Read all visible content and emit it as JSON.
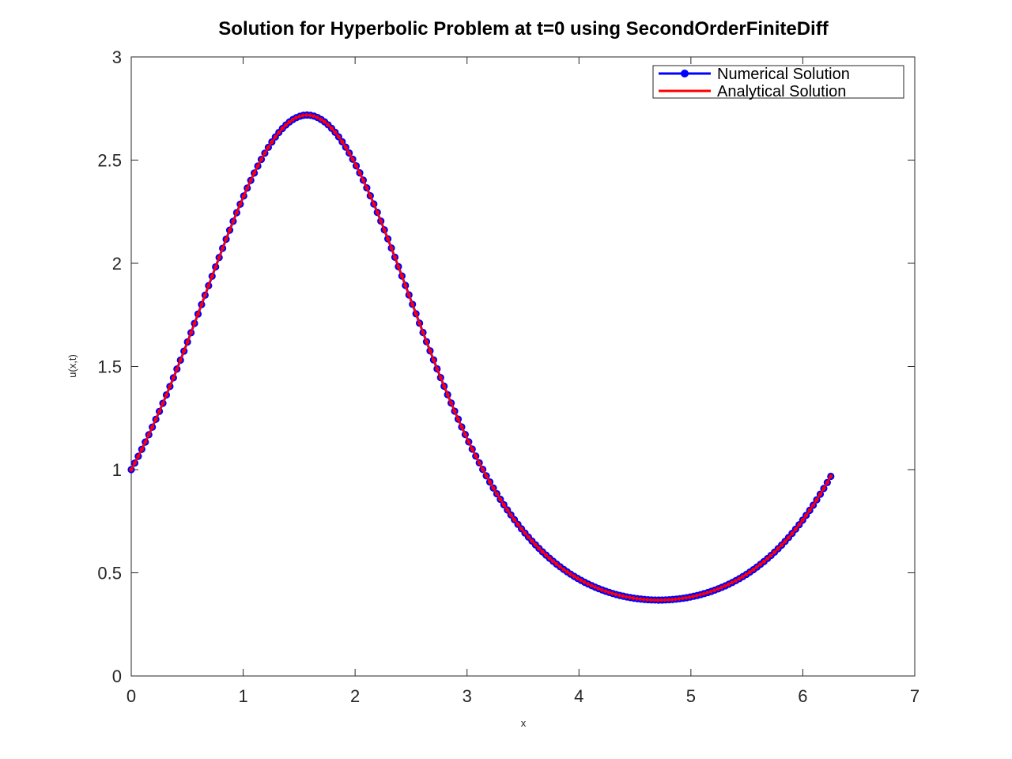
{
  "chart_data": {
    "type": "line",
    "title": "Solution for Hyperbolic Problem at t=0 using SecondOrderFiniteDiff",
    "xlabel": "x",
    "ylabel": "u(x,t)",
    "xlim": [
      0,
      7
    ],
    "ylim": [
      0,
      3
    ],
    "xticks": [
      0,
      1,
      2,
      3,
      4,
      5,
      6,
      7
    ],
    "yticks": [
      0,
      0.5,
      1,
      1.5,
      2,
      2.5,
      3
    ],
    "xtick_labels": [
      "0",
      "1",
      "2",
      "3",
      "4",
      "5",
      "6",
      "7"
    ],
    "ytick_labels": [
      "0",
      "0.5",
      "1",
      "1.5",
      "2",
      "2.5",
      "3"
    ],
    "grid": false,
    "legend_position": "top-right",
    "x_start": 0,
    "x_end": 6.25,
    "point_count": 200,
    "sample_points": {
      "x": [
        0,
        0.5,
        1.0,
        1.571,
        2.0,
        2.5,
        3.0,
        3.5,
        4.0,
        4.712,
        5.0,
        5.5,
        6.0,
        6.25
      ],
      "y": [
        1.0,
        1.615,
        2.32,
        2.718,
        2.48,
        1.82,
        1.15,
        0.704,
        0.469,
        0.368,
        0.383,
        0.497,
        0.757,
        0.967
      ]
    },
    "series": [
      {
        "name": "Numerical Solution",
        "style": "line-with-circle-markers",
        "color": "#0000ff",
        "marker_fill": "#ff0000"
      },
      {
        "name": "Analytical Solution",
        "style": "line",
        "color": "#ff0000"
      }
    ]
  }
}
